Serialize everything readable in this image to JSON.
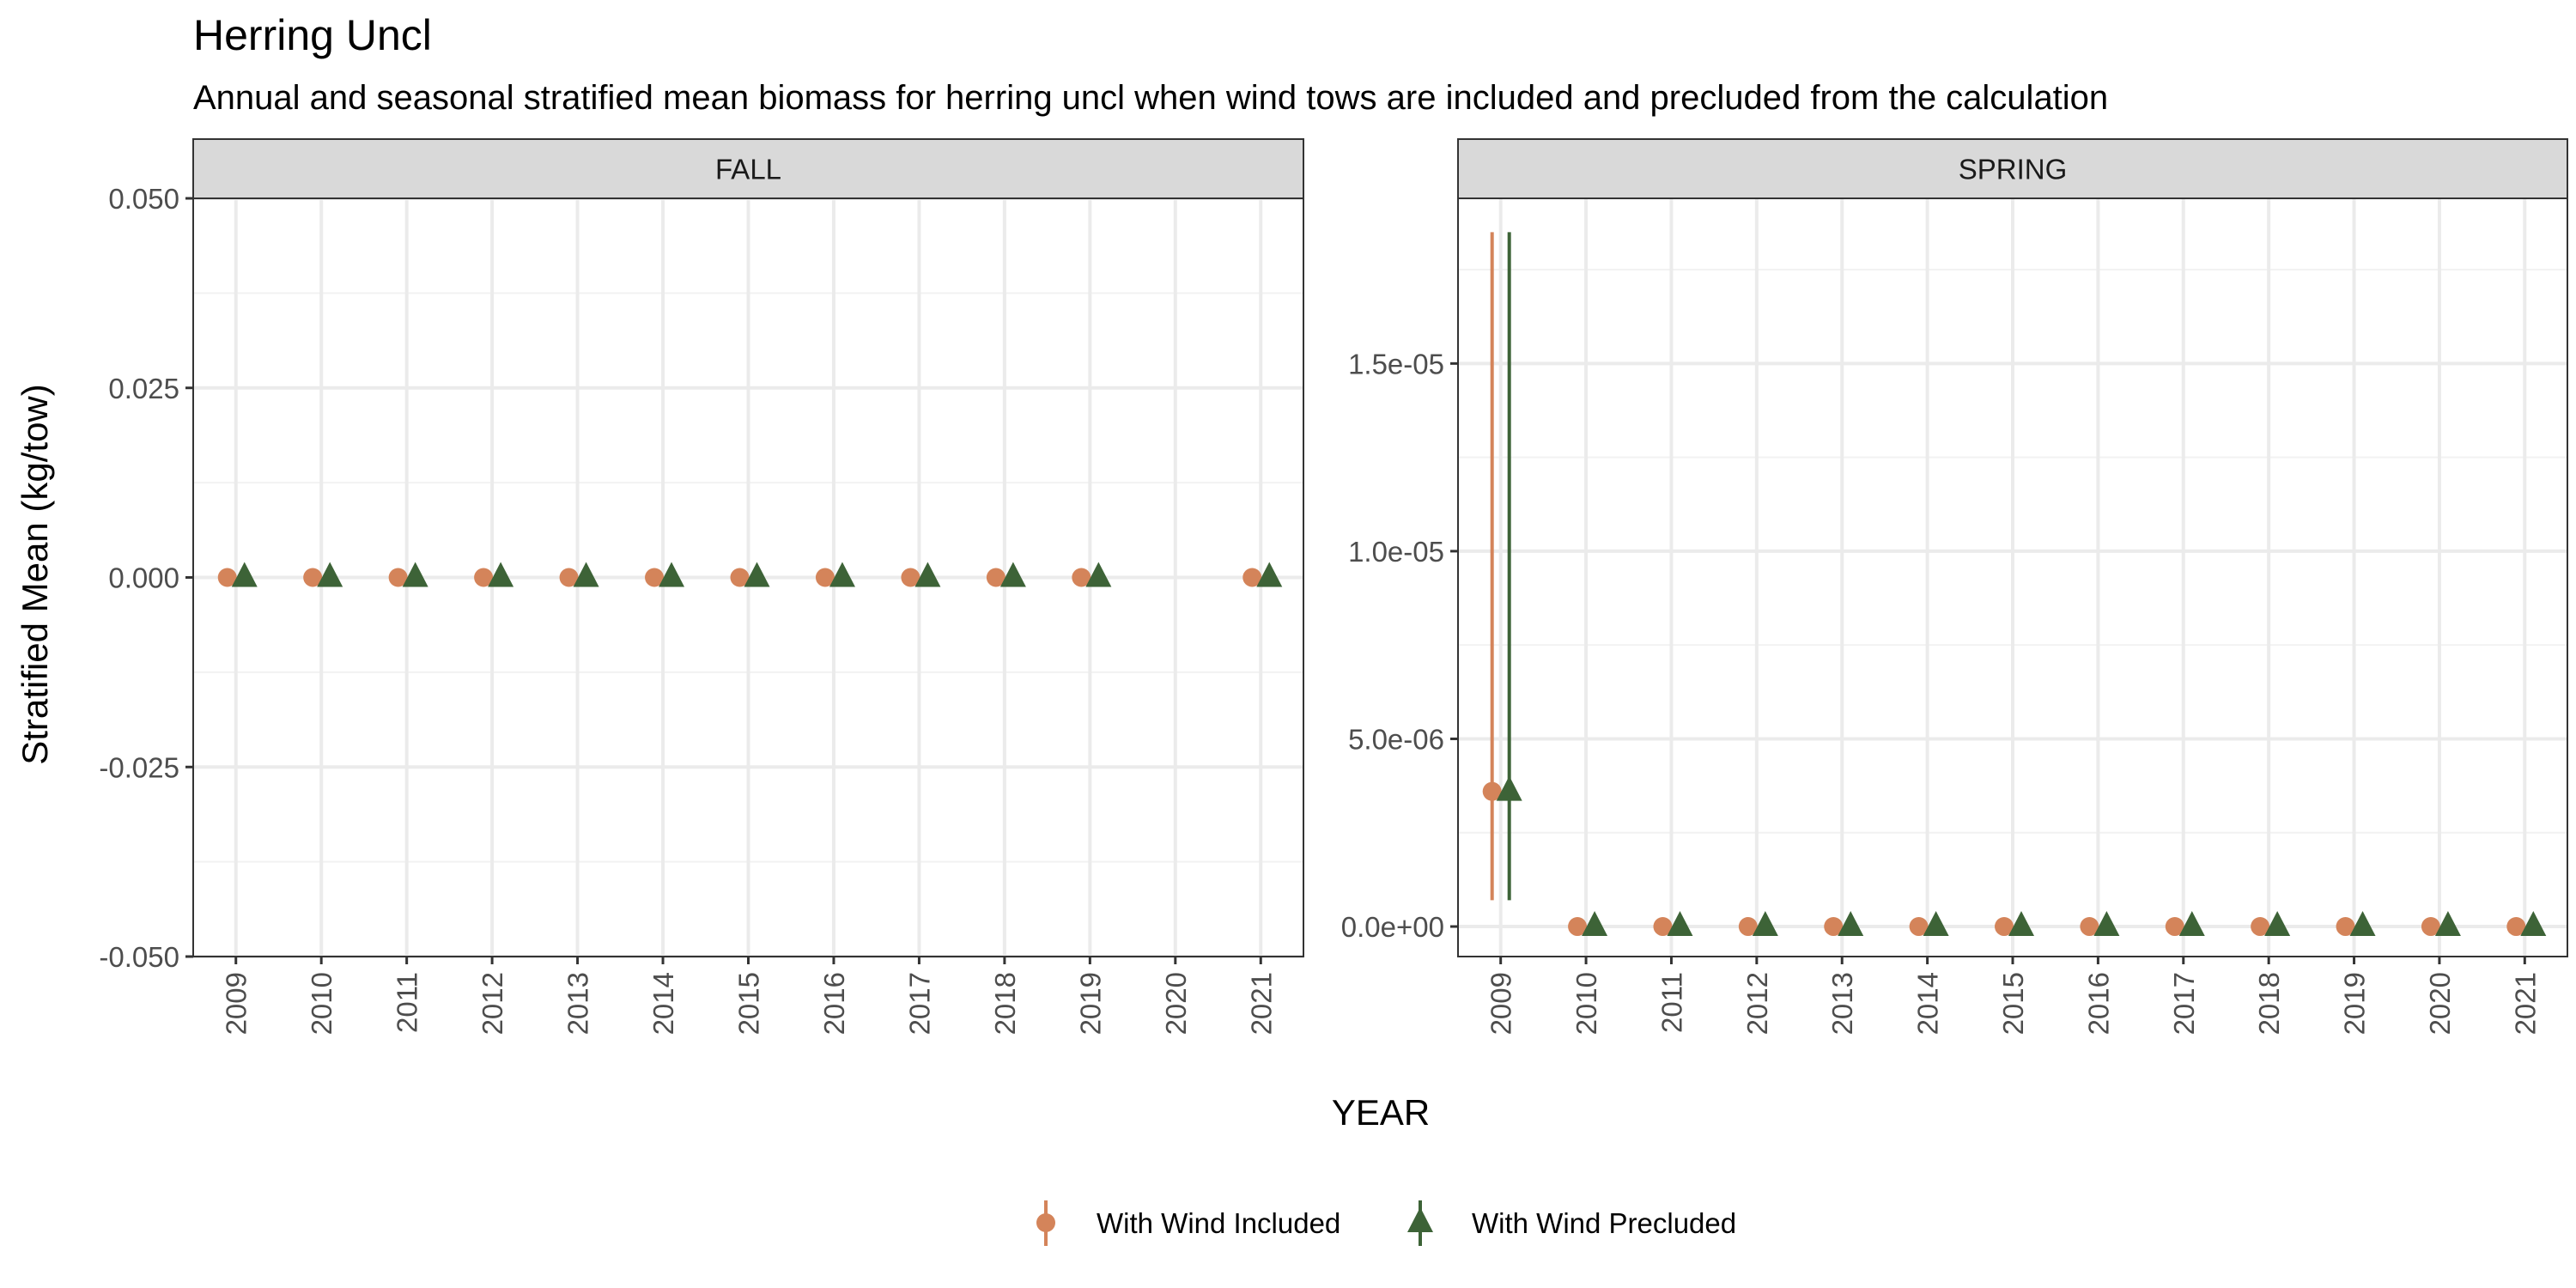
{
  "chart_data": {
    "type": "scatter",
    "title": "Herring Uncl",
    "subtitle": "Annual and seasonal stratified mean biomass for herring uncl when wind tows are included and precluded from the calculation",
    "xlabel": "YEAR",
    "ylabel": "Stratified Mean (kg/tow)",
    "legend_position": "bottom",
    "grid": true,
    "series_styles": [
      {
        "name": "With Wind Included",
        "color": "#D4845A",
        "marker": "circle"
      },
      {
        "name": "With Wind Precluded",
        "color": "#3D6337",
        "marker": "triangle"
      }
    ],
    "panels": [
      {
        "strip": "FALL",
        "x_ticks": [
          "2009",
          "2010",
          "2011",
          "2012",
          "2013",
          "2014",
          "2015",
          "2016",
          "2017",
          "2018",
          "2019",
          "2020",
          "2021"
        ],
        "ylim": [
          -0.05,
          0.05
        ],
        "y_ticks": [
          -0.05,
          -0.025,
          0,
          0.025,
          0.05
        ],
        "y_tick_labels": [
          "-0.050",
          "-0.025",
          "0.000",
          "0.025",
          "0.050"
        ],
        "series": [
          {
            "name": "With Wind Included",
            "points": [
              {
                "x": "2009",
                "y": 0
              },
              {
                "x": "2010",
                "y": 0
              },
              {
                "x": "2011",
                "y": 0
              },
              {
                "x": "2012",
                "y": 0
              },
              {
                "x": "2013",
                "y": 0
              },
              {
                "x": "2014",
                "y": 0
              },
              {
                "x": "2015",
                "y": 0
              },
              {
                "x": "2016",
                "y": 0
              },
              {
                "x": "2017",
                "y": 0
              },
              {
                "x": "2018",
                "y": 0
              },
              {
                "x": "2019",
                "y": 0
              },
              {
                "x": "2021",
                "y": 0
              }
            ]
          },
          {
            "name": "With Wind Precluded",
            "points": [
              {
                "x": "2009",
                "y": 0
              },
              {
                "x": "2010",
                "y": 0
              },
              {
                "x": "2011",
                "y": 0
              },
              {
                "x": "2012",
                "y": 0
              },
              {
                "x": "2013",
                "y": 0
              },
              {
                "x": "2014",
                "y": 0
              },
              {
                "x": "2015",
                "y": 0
              },
              {
                "x": "2016",
                "y": 0
              },
              {
                "x": "2017",
                "y": 0
              },
              {
                "x": "2018",
                "y": 0
              },
              {
                "x": "2019",
                "y": 0
              },
              {
                "x": "2021",
                "y": 0
              }
            ]
          }
        ]
      },
      {
        "strip": "SPRING",
        "x_ticks": [
          "2009",
          "2010",
          "2011",
          "2012",
          "2013",
          "2014",
          "2015",
          "2016",
          "2017",
          "2018",
          "2019",
          "2020",
          "2021"
        ],
        "ylim": [
          -8e-07,
          1.94e-05
        ],
        "y_ticks": [
          0,
          5e-06,
          1e-05,
          1.5e-05
        ],
        "y_tick_labels": [
          "0.0e+00",
          "5.0e-06",
          "1.0e-05",
          "1.5e-05"
        ],
        "series": [
          {
            "name": "With Wind Included",
            "points": [
              {
                "x": "2009",
                "y": 3.6e-06,
                "ymin": 7e-07,
                "ymax": 1.85e-05
              },
              {
                "x": "2010",
                "y": 0
              },
              {
                "x": "2011",
                "y": 0
              },
              {
                "x": "2012",
                "y": 0
              },
              {
                "x": "2013",
                "y": 0
              },
              {
                "x": "2014",
                "y": 0
              },
              {
                "x": "2015",
                "y": 0
              },
              {
                "x": "2016",
                "y": 0
              },
              {
                "x": "2017",
                "y": 0
              },
              {
                "x": "2018",
                "y": 0
              },
              {
                "x": "2019",
                "y": 0
              },
              {
                "x": "2020",
                "y": 0
              },
              {
                "x": "2021",
                "y": 0
              }
            ]
          },
          {
            "name": "With Wind Precluded",
            "points": [
              {
                "x": "2009",
                "y": 3.6e-06,
                "ymin": 7e-07,
                "ymax": 1.85e-05
              },
              {
                "x": "2010",
                "y": 0
              },
              {
                "x": "2011",
                "y": 0
              },
              {
                "x": "2012",
                "y": 0
              },
              {
                "x": "2013",
                "y": 0
              },
              {
                "x": "2014",
                "y": 0
              },
              {
                "x": "2015",
                "y": 0
              },
              {
                "x": "2016",
                "y": 0
              },
              {
                "x": "2017",
                "y": 0
              },
              {
                "x": "2018",
                "y": 0
              },
              {
                "x": "2019",
                "y": 0
              },
              {
                "x": "2020",
                "y": 0
              },
              {
                "x": "2021",
                "y": 0
              }
            ]
          }
        ]
      }
    ]
  }
}
